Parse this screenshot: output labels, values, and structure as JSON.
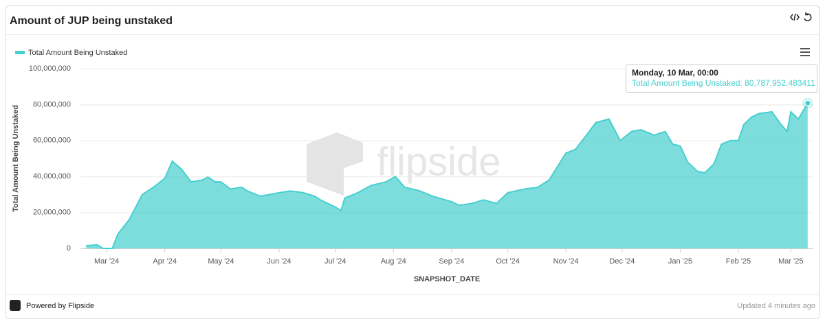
{
  "header": {
    "title": "Amount of JUP being unstaked"
  },
  "footer": {
    "powered": "Powered by Flipside",
    "updated": "Updated 4 minutes ago"
  },
  "watermark": "flipside",
  "chart_data": {
    "type": "area",
    "x_label": "SNAPSHOT_DATE",
    "y_label": "Total Amount Being Unstaked",
    "legend": "top-left",
    "grid": true,
    "x": [
      "2024-02-19",
      "2024-02-25",
      "2024-02-28",
      "2024-03-04",
      "2024-03-07",
      "2024-03-13",
      "2024-03-20",
      "2024-03-26",
      "2024-04-01",
      "2024-04-05",
      "2024-04-10",
      "2024-04-15",
      "2024-04-21",
      "2024-04-24",
      "2024-04-28",
      "2024-05-01",
      "2024-05-06",
      "2024-05-12",
      "2024-05-15",
      "2024-05-22",
      "2024-06-01",
      "2024-06-07",
      "2024-06-14",
      "2024-06-20",
      "2024-06-23",
      "2024-06-27",
      "2024-07-01",
      "2024-07-04",
      "2024-07-06",
      "2024-07-13",
      "2024-07-20",
      "2024-07-28",
      "2024-08-02",
      "2024-08-07",
      "2024-08-15",
      "2024-08-22",
      "2024-09-01",
      "2024-09-05",
      "2024-09-12",
      "2024-09-18",
      "2024-09-25",
      "2024-10-01",
      "2024-10-10",
      "2024-10-17",
      "2024-10-23",
      "2024-11-01",
      "2024-11-06",
      "2024-11-12",
      "2024-11-17",
      "2024-11-24",
      "2024-11-30",
      "2024-12-06",
      "2024-12-11",
      "2024-12-18",
      "2024-12-24",
      "2024-12-28",
      "2025-01-01",
      "2025-01-05",
      "2025-01-10",
      "2025-01-14",
      "2025-01-19",
      "2025-01-23",
      "2025-01-28",
      "2025-02-01",
      "2025-02-04",
      "2025-02-08",
      "2025-02-12",
      "2025-02-19",
      "2025-02-23",
      "2025-02-27",
      "2025-03-01",
      "2025-03-05",
      "2025-03-10"
    ],
    "series": [
      {
        "name": "Total Amount Being Unstaked",
        "color": "#46cfcf",
        "values": [
          1500000,
          2000000,
          0,
          0,
          8000000,
          16000000,
          30000000,
          34000000,
          39000000,
          48500000,
          44000000,
          37000000,
          38000000,
          39700000,
          37000000,
          37000000,
          33000000,
          34000000,
          32000000,
          29000000,
          31000000,
          32000000,
          31000000,
          29000000,
          27000000,
          25000000,
          23000000,
          21000000,
          28000000,
          31000000,
          35000000,
          37000000,
          40000000,
          34000000,
          32000000,
          29000000,
          26000000,
          24000000,
          25000000,
          27000000,
          25000000,
          31000000,
          33000000,
          34000000,
          38000000,
          53000000,
          55000000,
          63000000,
          70000000,
          72000000,
          60000000,
          65000000,
          66000000,
          63000000,
          65000000,
          58000000,
          57000000,
          48000000,
          43000000,
          42000000,
          47000000,
          58000000,
          60000000,
          60000000,
          69000000,
          73000000,
          75000000,
          76000000,
          70000000,
          65000000,
          76000000,
          72000000,
          80787952.483411
        ]
      }
    ],
    "xlim": [
      "2024-02-16",
      "2025-03-13"
    ],
    "xticks": [
      {
        "value": "2024-03-01",
        "label": "Mar '24"
      },
      {
        "value": "2024-04-01",
        "label": "Apr '24"
      },
      {
        "value": "2024-05-01",
        "label": "May '24"
      },
      {
        "value": "2024-06-01",
        "label": "Jun '24"
      },
      {
        "value": "2024-07-01",
        "label": "Jul '24"
      },
      {
        "value": "2024-08-01",
        "label": "Aug '24"
      },
      {
        "value": "2024-09-01",
        "label": "Sep '24"
      },
      {
        "value": "2024-10-01",
        "label": "Oct '24"
      },
      {
        "value": "2024-11-01",
        "label": "Nov '24"
      },
      {
        "value": "2024-12-01",
        "label": "Dec '24"
      },
      {
        "value": "2025-01-01",
        "label": "Jan '25"
      },
      {
        "value": "2025-02-01",
        "label": "Feb '25"
      },
      {
        "value": "2025-03-01",
        "label": "Mar '25"
      }
    ],
    "ylim": [
      0,
      100000000
    ],
    "yticks": [
      0,
      {
        "value": 20000000,
        "label": "20,000,000"
      },
      {
        "value": 40000000,
        "label": "40,000,000"
      },
      {
        "value": 60000000,
        "label": "60,000,000"
      },
      {
        "value": 80000000,
        "label": "80,000,000"
      },
      {
        "value": 100000000,
        "label": "100,000,000"
      }
    ],
    "tooltip": {
      "title": "Monday, 10 Mar, 00:00",
      "text": "Total Amount Being Unstaked: 80,787,952.483411"
    }
  }
}
